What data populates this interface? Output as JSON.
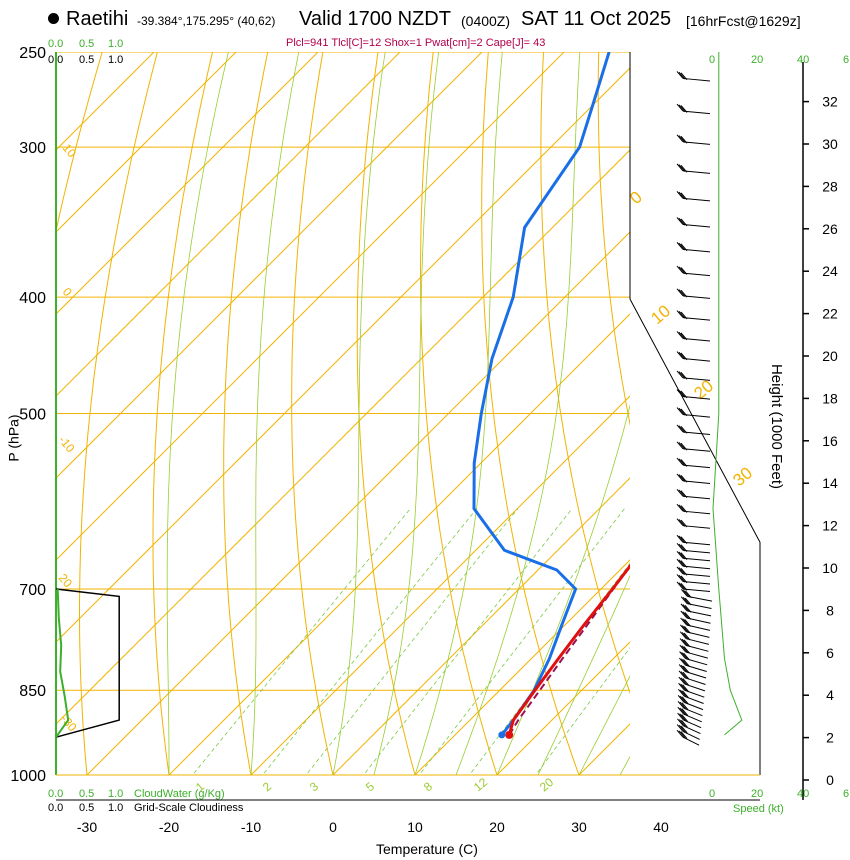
{
  "header": {
    "station": "Raetihi",
    "coords": "-39.384°,175.295° (40,62)",
    "valid": "Valid 1700 NZDT",
    "zulu": "(0400Z)",
    "date": "SAT 11 Oct 2025",
    "forecast": "[16hrFcst@1629z]",
    "params": "Plcl=941 Tlcl[C]=12 Shox=1 Pwat[cm]=2 Cape[J]= 43"
  },
  "scales": {
    "top_green": [
      "0.0",
      "0.5",
      "1.0"
    ],
    "top_black": [
      "0.0",
      "0.5",
      "1.0"
    ],
    "bottom_green": [
      "0.0",
      "0.5",
      "1.0"
    ],
    "bottom_black": [
      "0.0",
      "0.5",
      "1.0"
    ],
    "cloudwater_label": "CloudWater (g/Kg)",
    "cloudiness_label": "Grid-Scale Cloudiness",
    "speed_top": [
      "0",
      "20",
      "40"
    ],
    "speed_bottom": [
      "0",
      "20",
      "40"
    ],
    "speed_label": "Speed (kt)",
    "extra_top": "6",
    "extra_bottom": "6"
  },
  "colors": {
    "temperature": "#e01010",
    "dewpoint": "#1a6fe8",
    "parcel": "#9a1050",
    "isotherm": "#f2b300",
    "dry_adiabat": "#f2b300",
    "moist_adiabat": "#9acd32",
    "mixing_ratio": "#7ac943",
    "cloudwater": "#3cb02a",
    "wind": "#000000"
  },
  "chart_data": {
    "type": "skew-t log-p sounding",
    "title": "Raetihi Valid 1700 NZDT (0400Z) SAT 11 Oct 2025",
    "xlabel": "Temperature (C)",
    "ylabel": "P (hPa)",
    "y2label": "Height (1000 Feet)",
    "temperature_ticks": [
      -30,
      -20,
      -10,
      0,
      10,
      20,
      30,
      40
    ],
    "xlim": [
      -35,
      45
    ],
    "pressure_ticks": [
      250,
      300,
      400,
      500,
      700,
      850,
      1000
    ],
    "ylim": [
      1000,
      250
    ],
    "height_ticks_kft": [
      0,
      2,
      4,
      6,
      8,
      10,
      12,
      14,
      16,
      18,
      20,
      22,
      24,
      26,
      28,
      30,
      32
    ],
    "temperature_profile": [
      {
        "p": 926,
        "t": 16.6
      },
      {
        "p": 900,
        "t": 15.3
      },
      {
        "p": 850,
        "t": 14.3
      },
      {
        "p": 800,
        "t": 13.3
      },
      {
        "p": 750,
        "t": 12.3
      },
      {
        "p": 700,
        "t": 11.4
      },
      {
        "p": 650,
        "t": 10.3
      },
      {
        "p": 600,
        "t": 7.4
      },
      {
        "p": 550,
        "t": 3.7
      },
      {
        "p": 500,
        "t": -1.0
      },
      {
        "p": 450,
        "t": -7.7
      },
      {
        "p": 400,
        "t": -14.3
      },
      {
        "p": 350,
        "t": -22.7
      },
      {
        "p": 300,
        "t": -32.4
      },
      {
        "p": 275,
        "t": -38.3
      },
      {
        "p": 250,
        "t": -44.5
      }
    ],
    "dewpoint_profile": [
      {
        "p": 926,
        "t": 15.7
      },
      {
        "p": 900,
        "t": 15.3
      },
      {
        "p": 850,
        "t": 14.2
      },
      {
        "p": 800,
        "t": 12.2
      },
      {
        "p": 750,
        "t": 9.6
      },
      {
        "p": 700,
        "t": 6.9
      },
      {
        "p": 675,
        "t": 2.3
      },
      {
        "p": 650,
        "t": -6.5
      },
      {
        "p": 600,
        "t": -15.3
      },
      {
        "p": 550,
        "t": -20.8
      },
      {
        "p": 500,
        "t": -26.0
      },
      {
        "p": 450,
        "t": -31.4
      },
      {
        "p": 400,
        "t": -36.3
      },
      {
        "p": 350,
        "t": -43.4
      },
      {
        "p": 300,
        "t": -46.5
      },
      {
        "p": 275,
        "t": -50.3
      },
      {
        "p": 250,
        "t": -54.5
      }
    ],
    "parcel_profile": [
      {
        "p": 926,
        "t": 16.6
      },
      {
        "p": 900,
        "t": 15.9
      },
      {
        "p": 850,
        "t": 14.9
      },
      {
        "p": 800,
        "t": 13.8
      },
      {
        "p": 750,
        "t": 12.7
      },
      {
        "p": 700,
        "t": 11.5
      },
      {
        "p": 650,
        "t": 10.3
      }
    ],
    "isotherm_labels": [
      "-30",
      "-20",
      "-10",
      "0",
      "10",
      "20",
      "30"
    ],
    "dry_adiabat_labels": [
      "10",
      "0",
      "-10",
      "20",
      "30",
      "0",
      "10",
      "20",
      "30"
    ],
    "mixing_ratio_labels": [
      "1",
      "2",
      "3",
      "5",
      "8",
      "12",
      "20"
    ],
    "surface_marker": {
      "p": 926,
      "t": 16.6,
      "td": 15.7
    },
    "cloudwater": [
      {
        "p": 700,
        "v": 0.05
      },
      {
        "p": 740,
        "v": 0.08
      },
      {
        "p": 780,
        "v": 0.15
      },
      {
        "p": 820,
        "v": 0.12
      },
      {
        "p": 860,
        "v": 0.25
      },
      {
        "p": 900,
        "v": 0.35
      },
      {
        "p": 930,
        "v": 0.0
      }
    ],
    "cloudiness": [
      {
        "p": 700,
        "v": 0.0
      },
      {
        "p": 710,
        "v": 0.75
      },
      {
        "p": 900,
        "v": 0.75
      },
      {
        "p": 930,
        "v": 0.0
      }
    ],
    "wind_speed_profile": [
      {
        "p": 926,
        "v": 2
      },
      {
        "p": 900,
        "v": 5
      },
      {
        "p": 850,
        "v": 3
      },
      {
        "p": 800,
        "v": 2
      },
      {
        "p": 700,
        "v": 1
      },
      {
        "p": 600,
        "v": 0
      },
      {
        "p": 500,
        "v": 1
      },
      {
        "p": 400,
        "v": 1
      },
      {
        "p": 300,
        "v": 1
      },
      {
        "p": 250,
        "v": 1
      }
    ]
  }
}
